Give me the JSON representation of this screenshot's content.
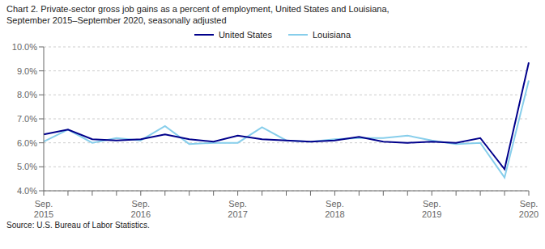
{
  "chart_data": {
    "type": "line",
    "title": "Chart 2. Private-sector gross  job gains as a percent of employment, United States and Louisiana,",
    "subtitle": "September 2015–September 2020, seasonally adjusted",
    "annotations": [
      "Source: U.S. Bureau of Labor Statistics."
    ],
    "categories": [
      "Sep.\n2015",
      null,
      null,
      null,
      "Sep.\n2016",
      null,
      null,
      null,
      "Sep.\n2017",
      null,
      null,
      null,
      "Sep.\n2018",
      null,
      null,
      null,
      "Sep.\n2019",
      null,
      null,
      null,
      "Sep.\n2020"
    ],
    "series": [
      {
        "name": "Louisiana",
        "color": "#87CEEB",
        "values": [
          6.05,
          6.55,
          6.0,
          6.2,
          6.1,
          6.7,
          5.95,
          6.0,
          6.0,
          6.65,
          6.1,
          6.05,
          6.15,
          6.2,
          6.2,
          6.3,
          6.1,
          5.95,
          6.0,
          4.55,
          8.6
        ]
      },
      {
        "name": "United States",
        "color": "#00008B",
        "values": [
          6.35,
          6.55,
          6.15,
          6.1,
          6.15,
          6.35,
          6.15,
          6.05,
          6.3,
          6.15,
          6.1,
          6.05,
          6.1,
          6.25,
          6.05,
          6.0,
          6.05,
          6.0,
          6.2,
          4.9,
          9.35
        ]
      }
    ],
    "ylim": [
      4.0,
      10.0
    ],
    "yticks": [
      {
        "value": 4.0,
        "label": "4.0%"
      },
      {
        "value": 5.0,
        "label": "5.0%"
      },
      {
        "value": 6.0,
        "label": "6.0%"
      },
      {
        "value": 7.0,
        "label": "7.0%"
      },
      {
        "value": 8.0,
        "label": "8.0%"
      },
      {
        "value": 9.0,
        "label": "9.0%"
      },
      {
        "value": 10.0,
        "label": "10.0%"
      }
    ],
    "grid": true,
    "legend": "top"
  }
}
